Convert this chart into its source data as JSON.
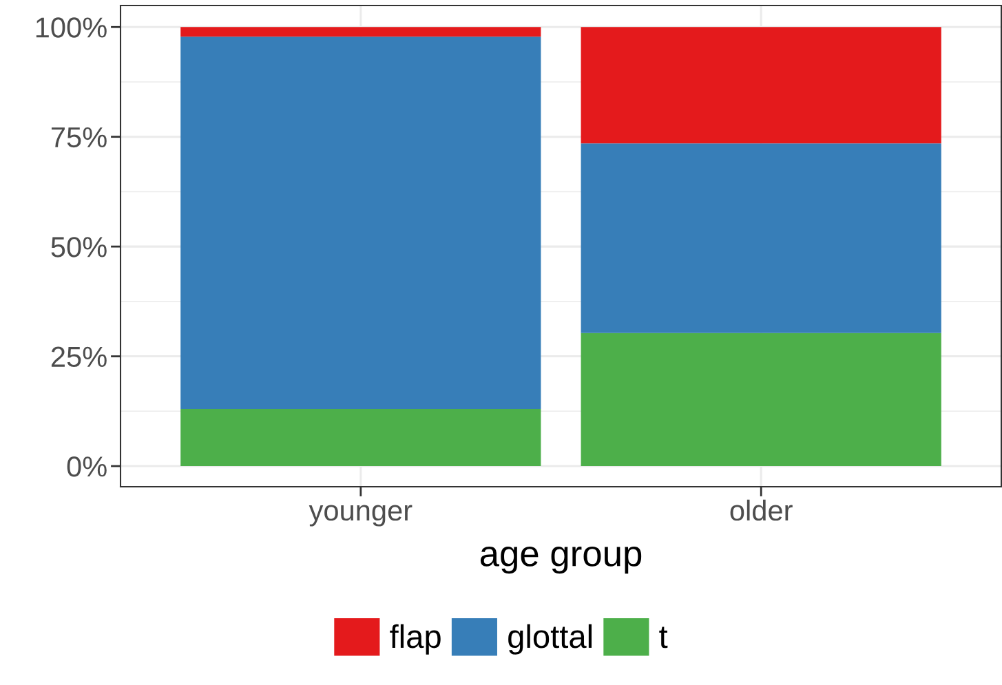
{
  "chart_data": {
    "type": "bar",
    "stacked": true,
    "xlabel": "age group",
    "categories": [
      "younger",
      "older"
    ],
    "series": [
      {
        "name": "t",
        "color": "#4daf4a",
        "values": [
          13.0,
          30.3
        ]
      },
      {
        "name": "glottal",
        "color": "#377eb8",
        "values": [
          84.8,
          43.2
        ]
      },
      {
        "name": "flap",
        "color": "#e41a1c",
        "values": [
          2.2,
          26.5
        ]
      }
    ],
    "ylim": [
      -4.7,
      104.9
    ],
    "yticks": [
      {
        "value": 0,
        "label": "0%"
      },
      {
        "value": 25,
        "label": "25%"
      },
      {
        "value": 50,
        "label": "50%"
      },
      {
        "value": 75,
        "label": "75%"
      },
      {
        "value": 100,
        "label": "100%"
      }
    ],
    "grid": true,
    "legend": "bottom"
  }
}
